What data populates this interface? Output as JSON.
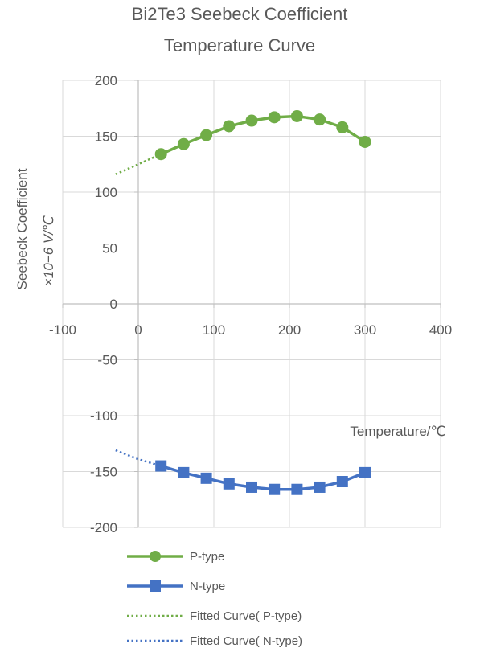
{
  "chart_data": {
    "type": "line",
    "title": [
      "Bi2Te3 Seebeck Coefficient",
      "Temperature Curve"
    ],
    "xlabel": "Temperature/℃",
    "ylabel": [
      "Seebeck Coefficient",
      "×10−6 V/℃"
    ],
    "xlim": [
      -100,
      400
    ],
    "ylim": [
      -200,
      200
    ],
    "x_ticks": [
      "-100",
      "0",
      "100",
      "200",
      "300",
      "400"
    ],
    "y_ticks": [
      "200",
      "150",
      "100",
      "50",
      "0",
      "-50",
      "-100",
      "-150",
      "-200"
    ],
    "legend_position": "bottom",
    "series": [
      {
        "name": "P-type",
        "color": "#70ad47",
        "marker": "circle",
        "x": [
          30,
          60,
          90,
          120,
          150,
          180,
          210,
          240,
          270,
          300
        ],
        "y": [
          134,
          143,
          151,
          159,
          164,
          167,
          168,
          165,
          158,
          145
        ]
      },
      {
        "name": "N-type",
        "color": "#4472c4",
        "marker": "square",
        "x": [
          30,
          60,
          90,
          120,
          150,
          180,
          210,
          240,
          270,
          300
        ],
        "y": [
          -145,
          -151,
          -156,
          -161,
          -164,
          -166,
          -166,
          -164,
          -159,
          -151
        ]
      },
      {
        "name": "Fitted Curve( P-type)",
        "color": "#70ad47",
        "style": "dotted",
        "x": [
          -30,
          0,
          30
        ],
        "y": [
          116,
          125,
          134
        ]
      },
      {
        "name": "Fitted Curve( N-type)",
        "color": "#4472c4",
        "style": "dotted",
        "x": [
          -30,
          0,
          30
        ],
        "y": [
          -131,
          -139,
          -145
        ]
      }
    ]
  }
}
